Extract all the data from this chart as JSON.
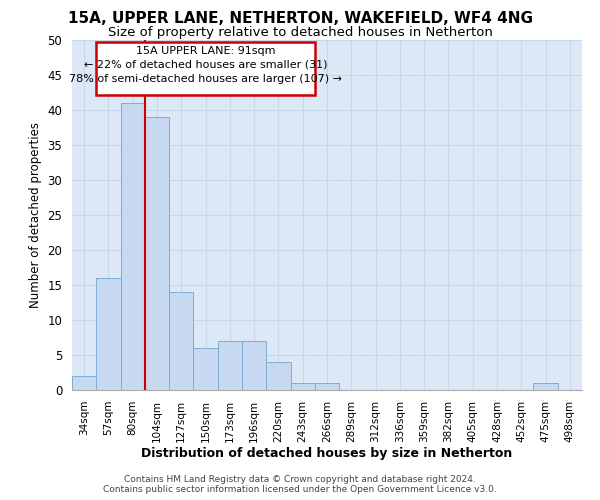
{
  "title_line1": "15A, UPPER LANE, NETHERTON, WAKEFIELD, WF4 4NG",
  "title_line2": "Size of property relative to detached houses in Netherton",
  "xlabel": "Distribution of detached houses by size in Netherton",
  "ylabel": "Number of detached properties",
  "bar_color": "#c6d9f0",
  "bar_edge_color": "#7bafd4",
  "grid_color": "#c8d8ec",
  "background_color": "#dce8f5",
  "vline_color": "#cc0000",
  "bins": [
    "34sqm",
    "57sqm",
    "80sqm",
    "104sqm",
    "127sqm",
    "150sqm",
    "173sqm",
    "196sqm",
    "220sqm",
    "243sqm",
    "266sqm",
    "289sqm",
    "312sqm",
    "336sqm",
    "359sqm",
    "382sqm",
    "405sqm",
    "428sqm",
    "452sqm",
    "475sqm",
    "498sqm"
  ],
  "values": [
    2,
    16,
    41,
    39,
    14,
    6,
    7,
    7,
    4,
    1,
    1,
    0,
    0,
    0,
    0,
    0,
    0,
    0,
    0,
    1,
    0
  ],
  "vline_x": 2.5,
  "ann_line1": "15A UPPER LANE: 91sqm",
  "ann_line2": "← 22% of detached houses are smaller (31)",
  "ann_line3": "78% of semi-detached houses are larger (107) →",
  "ylim_max": 50,
  "yticks": [
    0,
    5,
    10,
    15,
    20,
    25,
    30,
    35,
    40,
    45,
    50
  ],
  "footer_line1": "Contains HM Land Registry data © Crown copyright and database right 2024.",
  "footer_line2": "Contains public sector information licensed under the Open Government Licence v3.0."
}
